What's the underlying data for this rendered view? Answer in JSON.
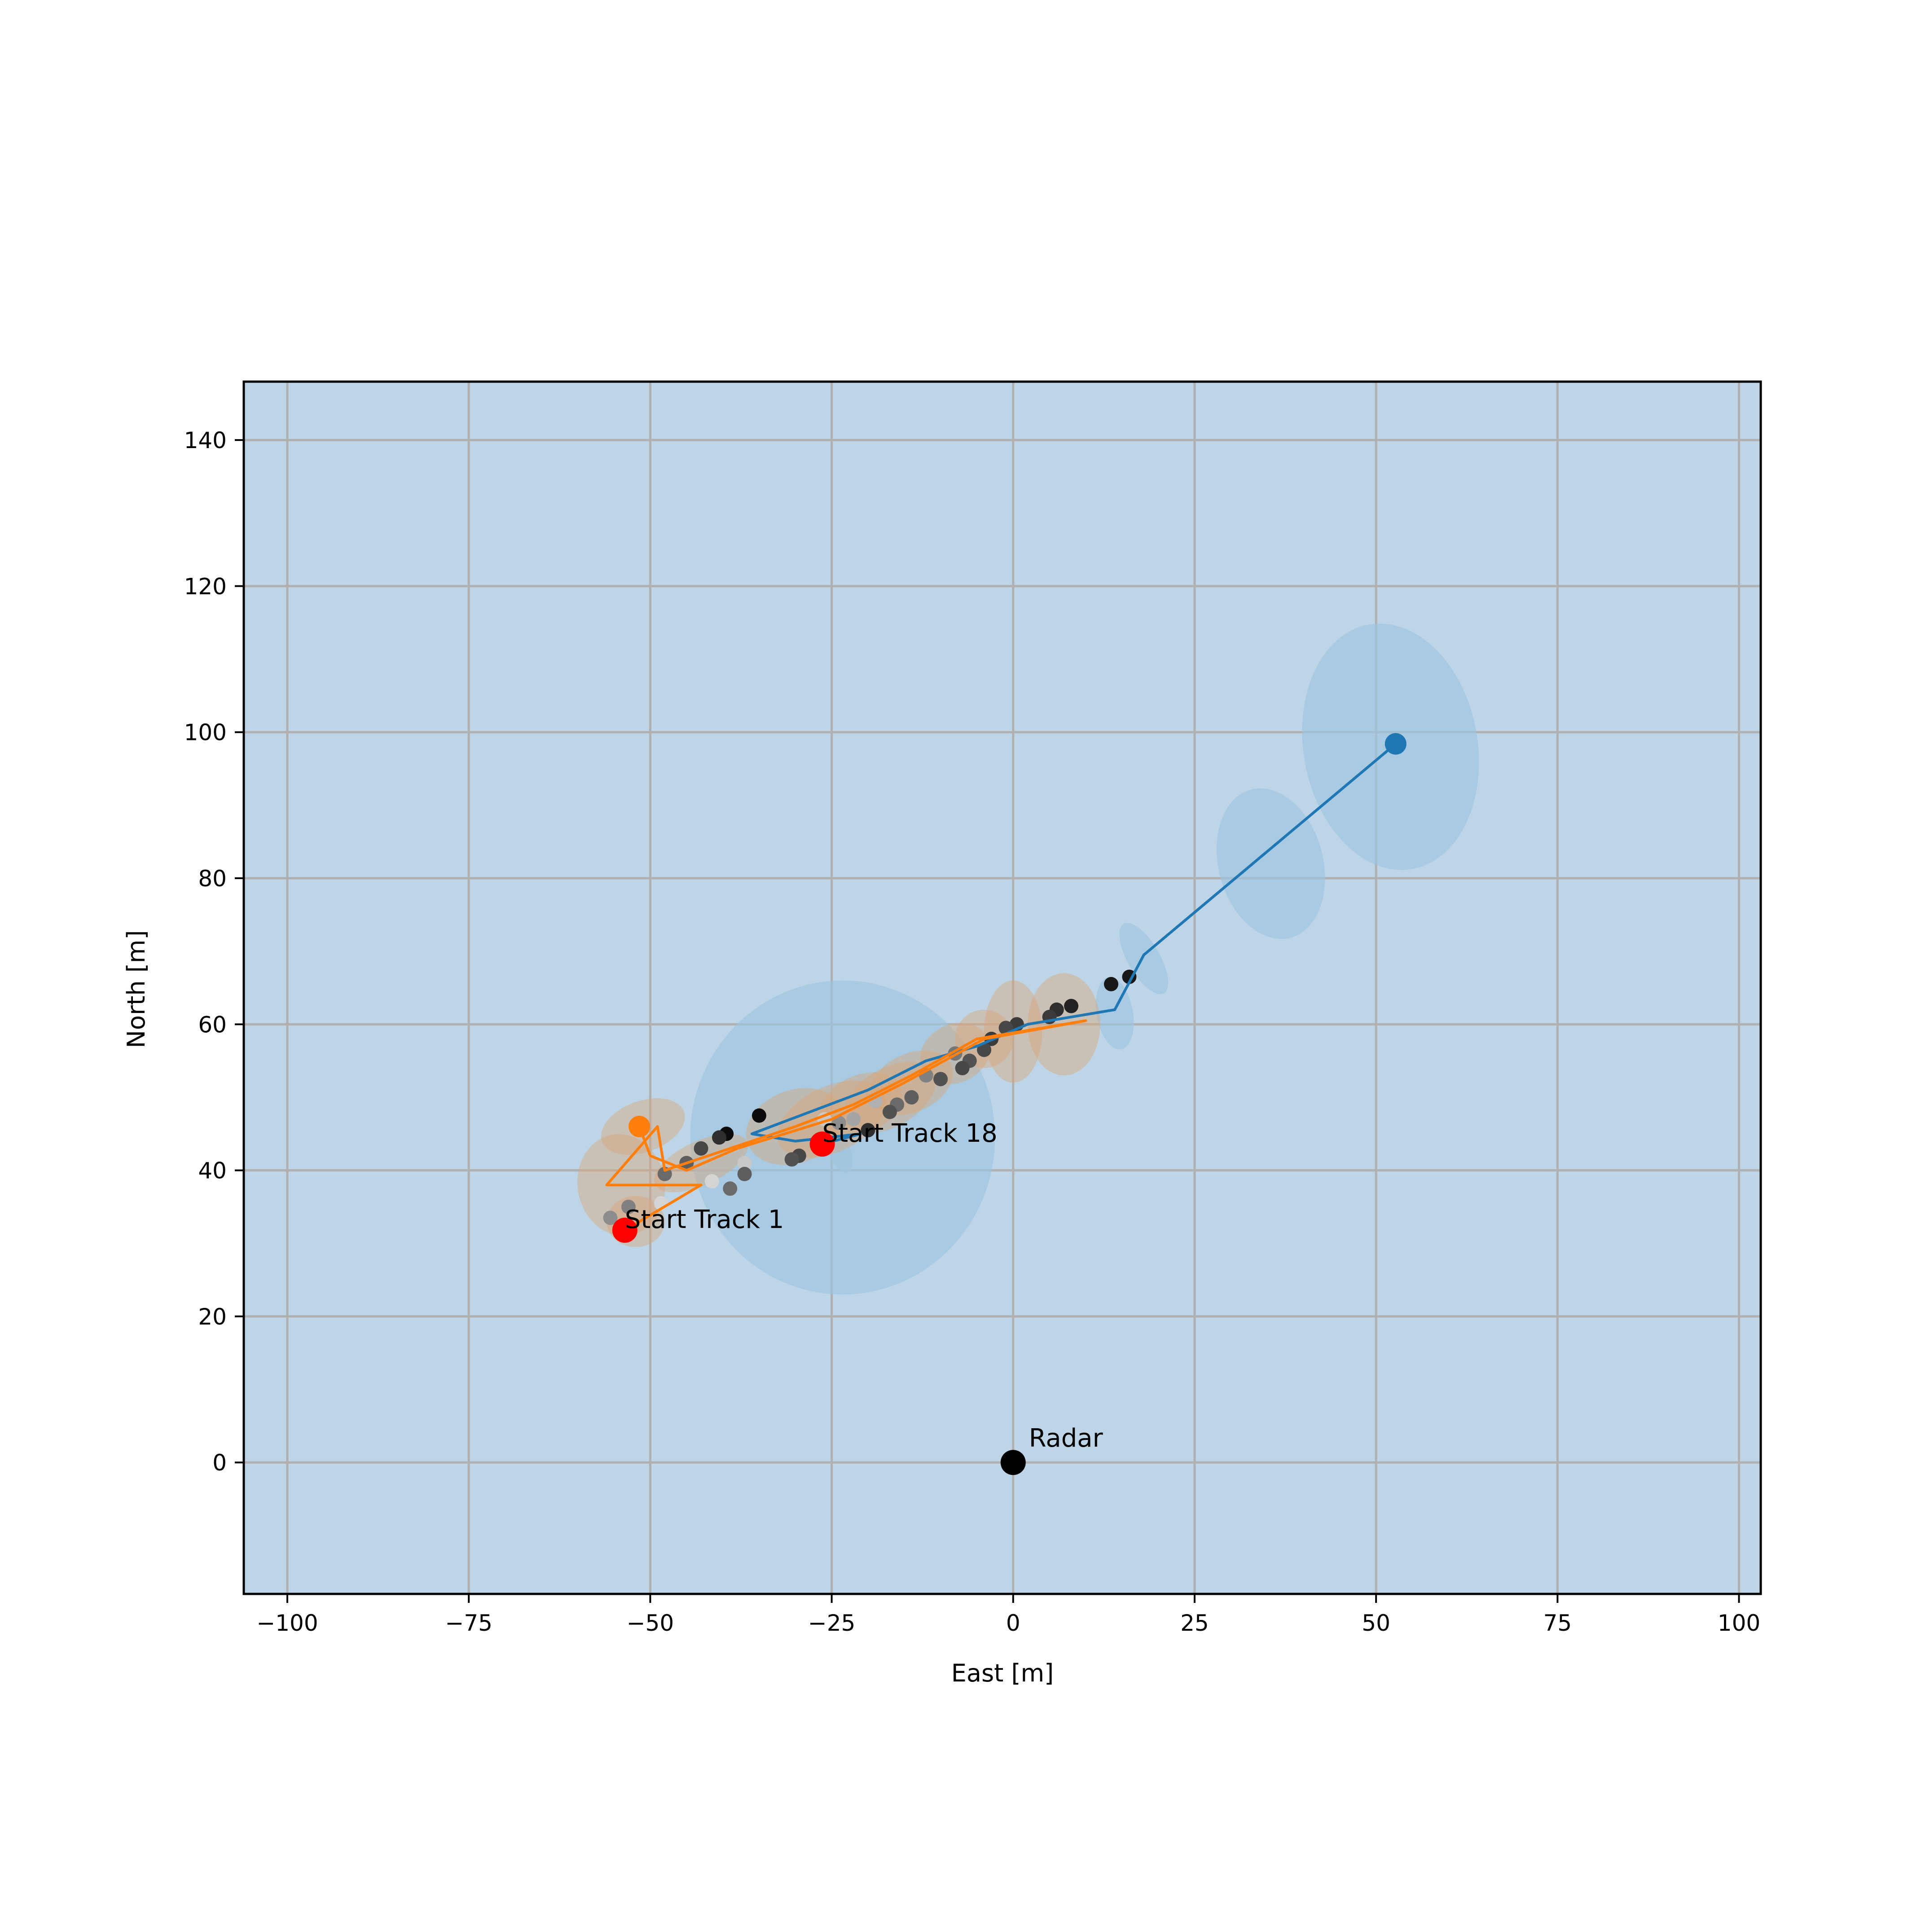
{
  "chart_data": {
    "type": "scatter",
    "title": "",
    "xlabel": "East [m]",
    "ylabel": "North [m]",
    "xlim": [
      -106,
      103
    ],
    "ylim": [
      -18,
      148
    ],
    "xticks": [
      -100,
      -75,
      -50,
      -25,
      0,
      25,
      50,
      75,
      100
    ],
    "xtick_labels": [
      "−100",
      "−75",
      "−50",
      "−25",
      "0",
      "25",
      "50",
      "75",
      "100"
    ],
    "yticks": [
      0,
      20,
      40,
      60,
      80,
      100,
      120,
      140
    ],
    "ytick_labels": [
      "0",
      "20",
      "40",
      "60",
      "80",
      "100",
      "120",
      "140"
    ],
    "grid": true,
    "colors": {
      "background": "#bdd5e7",
      "grid": "#b0b0b0",
      "track_blue": "#1f77b4",
      "track_orange": "#ff7f0e",
      "covariance_blue": "#9fc4df",
      "covariance_orange": "#d8a77a",
      "start_marker": "#ff0000",
      "radar": "#000000"
    },
    "annotations": [
      {
        "text": "Radar",
        "x": 0,
        "y": 0
      },
      {
        "text": "Start Track 1",
        "x": -53.5,
        "y": 31.8
      },
      {
        "text": "Start Track 18",
        "x": -26.3,
        "y": 43.6
      }
    ],
    "series": [
      {
        "color": "#1f77b4",
        "points": [
          [
            -26.3,
            43.6
          ],
          [
            -21,
            45
          ],
          [
            -30,
            44
          ],
          [
            -36,
            45
          ],
          [
            -20,
            51
          ],
          [
            -12,
            55
          ],
          [
            -5,
            57
          ],
          [
            2,
            60
          ],
          [
            14,
            62
          ],
          [
            18,
            69.5
          ],
          [
            52.7,
            98.4
          ]
        ],
        "end": [
          52.7,
          98.4
        ],
        "covariance": [
          {
            "x": -23.5,
            "y": 44.5,
            "rx": 21,
            "ry": 21.5,
            "angle": 0
          },
          {
            "x": 35.5,
            "y": 82,
            "rx": 7.2,
            "ry": 10.5,
            "angle": 15
          },
          {
            "x": 52,
            "y": 98,
            "rx": 12,
            "ry": 17,
            "angle": 10
          },
          {
            "x": 18,
            "y": 69,
            "rx": 2.2,
            "ry": 5.5,
            "angle": 30
          },
          {
            "x": 14,
            "y": 61.5,
            "rx": 2.5,
            "ry": 5,
            "angle": 10
          },
          {
            "x": -24,
            "y": 43,
            "rx": 1.5,
            "ry": 3.5,
            "angle": 20
          }
        ]
      },
      {
        "color": "#ff7f0e",
        "points": [
          [
            -53.5,
            31.8
          ],
          [
            -43,
            38
          ],
          [
            -56,
            38
          ],
          [
            -49,
            46
          ],
          [
            -48,
            40
          ],
          [
            -42,
            42
          ],
          [
            -30,
            46
          ],
          [
            -22,
            49
          ],
          [
            -14,
            53
          ],
          [
            -5,
            58
          ],
          [
            10,
            60.5
          ],
          [
            -4,
            58
          ],
          [
            -15,
            52
          ],
          [
            -25,
            47
          ],
          [
            -38,
            43
          ],
          [
            -45,
            40
          ],
          [
            -50,
            42
          ],
          [
            -51.5,
            46
          ]
        ],
        "end": [
          -51.5,
          46
        ],
        "covariance": [
          {
            "x": -51,
            "y": 46,
            "rx": 6,
            "ry": 3.5,
            "angle": 20
          },
          {
            "x": -54,
            "y": 38,
            "rx": 6,
            "ry": 7,
            "angle": 10
          },
          {
            "x": -52,
            "y": 33,
            "rx": 4,
            "ry": 3.5,
            "angle": 0
          },
          {
            "x": -43,
            "y": 41,
            "rx": 7,
            "ry": 3,
            "angle": 25
          },
          {
            "x": -30,
            "y": 46,
            "rx": 7,
            "ry": 5,
            "angle": 20
          },
          {
            "x": -21,
            "y": 49,
            "rx": 6,
            "ry": 4,
            "angle": 25
          },
          {
            "x": -14,
            "y": 52,
            "rx": 6,
            "ry": 4,
            "angle": 25
          },
          {
            "x": -8,
            "y": 56,
            "rx": 5,
            "ry": 4,
            "angle": 25
          },
          {
            "x": -4,
            "y": 58,
            "rx": 4,
            "ry": 4,
            "angle": 20
          },
          {
            "x": 0,
            "y": 59,
            "rx": 4,
            "ry": 7,
            "angle": 0
          },
          {
            "x": 7,
            "y": 60,
            "rx": 5,
            "ry": 7,
            "angle": 0
          },
          {
            "x": -25,
            "y": 47,
            "rx": 8,
            "ry": 4.5,
            "angle": 25
          },
          {
            "x": -17,
            "y": 50,
            "rx": 7,
            "ry": 4,
            "angle": 30
          }
        ]
      }
    ],
    "detections": [
      {
        "x": 16,
        "y": 66.5,
        "shade": 0.1
      },
      {
        "x": 13.5,
        "y": 65.5,
        "shade": 0.1
      },
      {
        "x": 8,
        "y": 62.5,
        "shade": 0.15
      },
      {
        "x": 6,
        "y": 62,
        "shade": 0.2
      },
      {
        "x": 5,
        "y": 61,
        "shade": 0.25
      },
      {
        "x": 0.5,
        "y": 60,
        "shade": 0.25
      },
      {
        "x": -1,
        "y": 59.5,
        "shade": 0.3
      },
      {
        "x": -3,
        "y": 58,
        "shade": 0.25
      },
      {
        "x": -4,
        "y": 56.5,
        "shade": 0.3
      },
      {
        "x": -6,
        "y": 55,
        "shade": 0.35
      },
      {
        "x": -7,
        "y": 54,
        "shade": 0.3
      },
      {
        "x": -8,
        "y": 56,
        "shade": 0.5
      },
      {
        "x": -10,
        "y": 52.5,
        "shade": 0.35
      },
      {
        "x": -12,
        "y": 53,
        "shade": 0.55
      },
      {
        "x": -14,
        "y": 50,
        "shade": 0.4
      },
      {
        "x": -16,
        "y": 49,
        "shade": 0.45
      },
      {
        "x": -17,
        "y": 48,
        "shade": 0.35
      },
      {
        "x": -19,
        "y": 49.5,
        "shade": 0.75
      },
      {
        "x": -20,
        "y": 45.5,
        "shade": 0.2
      },
      {
        "x": -22,
        "y": 47,
        "shade": 0.7
      },
      {
        "x": -24,
        "y": 46.5,
        "shade": 0.6
      },
      {
        "x": -26,
        "y": 47,
        "shade": 0.85
      },
      {
        "x": -29.5,
        "y": 42,
        "shade": 0.3
      },
      {
        "x": -30.5,
        "y": 41.5,
        "shade": 0.35
      },
      {
        "x": -35,
        "y": 47.5,
        "shade": 0.05
      },
      {
        "x": -37,
        "y": 41,
        "shade": 0.85
      },
      {
        "x": -37,
        "y": 39.5,
        "shade": 0.4
      },
      {
        "x": -39,
        "y": 37.5,
        "shade": 0.45
      },
      {
        "x": -39.5,
        "y": 45,
        "shade": 0.05
      },
      {
        "x": -40.5,
        "y": 44.5,
        "shade": 0.2
      },
      {
        "x": -41.5,
        "y": 38.5,
        "shade": 0.9
      },
      {
        "x": -43,
        "y": 43,
        "shade": 0.3
      },
      {
        "x": -45,
        "y": 41,
        "shade": 0.4
      },
      {
        "x": -48,
        "y": 39.5,
        "shade": 0.45
      },
      {
        "x": -48.5,
        "y": 35.5,
        "shade": 0.9
      },
      {
        "x": -53,
        "y": 35,
        "shade": 0.55
      },
      {
        "x": -55.5,
        "y": 33.5,
        "shade": 0.6
      }
    ],
    "radar": {
      "x": 0,
      "y": 0
    }
  }
}
